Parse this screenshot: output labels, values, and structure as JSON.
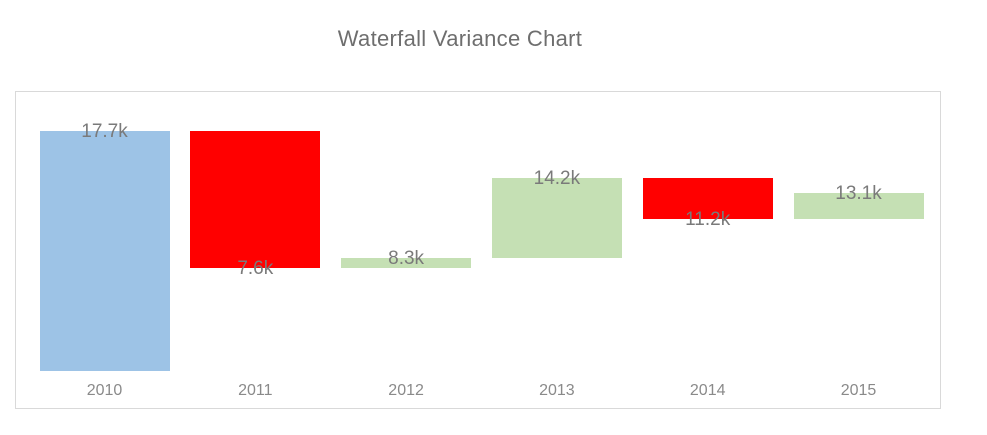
{
  "chart_data": {
    "type": "bar",
    "subtype": "waterfall",
    "title": "Waterfall Variance Chart",
    "categories": [
      "2010",
      "2011",
      "2012",
      "2013",
      "2014",
      "2015"
    ],
    "unit": "k",
    "steps": [
      {
        "year": "2010",
        "start": 0,
        "end": 17.7,
        "delta": 17.7,
        "kind": "start",
        "label": "17.7k",
        "label_at": "top"
      },
      {
        "year": "2011",
        "start": 17.7,
        "end": 7.6,
        "delta": -10.1,
        "kind": "decrease",
        "label": "7.6k",
        "label_at": "bottom"
      },
      {
        "year": "2012",
        "start": 7.6,
        "end": 8.3,
        "delta": 0.7,
        "kind": "increase",
        "label": "8.3k",
        "label_at": "top"
      },
      {
        "year": "2013",
        "start": 8.3,
        "end": 14.2,
        "delta": 5.9,
        "kind": "increase",
        "label": "14.2k",
        "label_at": "top"
      },
      {
        "year": "2014",
        "start": 14.2,
        "end": 11.2,
        "delta": -3.0,
        "kind": "decrease",
        "label": "11.2k",
        "label_at": "bottom"
      },
      {
        "year": "2015",
        "start": 11.2,
        "end": 13.1,
        "delta": 1.9,
        "kind": "increase",
        "label": "13.1k",
        "label_at": "top"
      }
    ],
    "colors": {
      "start": "#9dc3e6",
      "increase": "#c5e0b4",
      "decrease": "#ff0000",
      "frame_border": "#d9d9d9",
      "title_text": "#6e6e6e",
      "data_label_text": "#7a7a7a",
      "axis_label_text": "#8a8a8a"
    },
    "ylim": [
      0,
      20.6
    ],
    "grid": false,
    "legend": false,
    "y_axis_visible": false
  }
}
